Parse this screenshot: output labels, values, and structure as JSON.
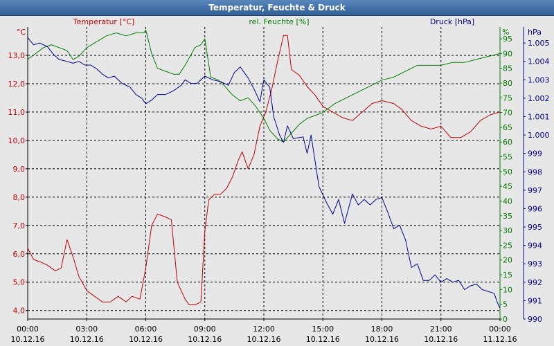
{
  "window": {
    "title": "Temperatur, Feuchte & Druck"
  },
  "colors": {
    "temperature": "#c00000",
    "humidity": "#007f00",
    "pressure": "#000090",
    "grid": "#000000",
    "background": "#e7e7e7",
    "titlebar": "#2f5f96"
  },
  "chart_data": {
    "type": "line",
    "title": "Temperatur, Feuchte & Druck",
    "grid": true,
    "x": {
      "range_hours": [
        0,
        24
      ],
      "tick_hours": [
        0,
        3,
        6,
        9,
        12,
        15,
        18,
        21,
        24
      ],
      "tick_labels": [
        [
          "00:00",
          "10.12.16"
        ],
        [
          "03:00",
          "10.12.16"
        ],
        [
          "06:00",
          "10.12.16"
        ],
        [
          "09:00",
          "10.12.16"
        ],
        [
          "12:00",
          "10.12.16"
        ],
        [
          "15:00",
          "10.12.16"
        ],
        [
          "18:00",
          "10.12.16"
        ],
        [
          "21:00",
          "10.12.16"
        ],
        [
          "00:00",
          "11.12.16"
        ]
      ]
    },
    "axes": {
      "temperature": {
        "label": "Temperatur [°C]",
        "unit": "°C",
        "range": [
          3.7,
          14.0
        ],
        "ticks": [
          4.0,
          5.0,
          6.0,
          7.0,
          8.0,
          9.0,
          10.0,
          11.0,
          12.0,
          13.0
        ],
        "tick_labels": [
          "4,0",
          "5,0",
          "6,0",
          "7,0",
          "8,0",
          "9,0",
          "10,0",
          "11,0",
          "12,0",
          "13,0"
        ]
      },
      "humidity": {
        "label": "rel. Feuchte [%]",
        "unit": "%",
        "range": [
          0,
          99
        ],
        "ticks": [
          0,
          5,
          10,
          15,
          20,
          25,
          30,
          35,
          40,
          45,
          50,
          55,
          60,
          65,
          70,
          75,
          80,
          85,
          90,
          95
        ],
        "tick_labels": [
          "0",
          "5",
          "10",
          "15",
          "20",
          "25",
          "30",
          "35",
          "40",
          "45",
          "50",
          "55",
          "60",
          "65",
          "70",
          "75",
          "80",
          "85",
          "90",
          "95"
        ]
      },
      "pressure": {
        "label": "Druck [hPa]",
        "unit": "hPa",
        "range": [
          990,
          1005.87
        ],
        "ticks": [
          990,
          991,
          992,
          993,
          994,
          995,
          996,
          997,
          998,
          999,
          1000,
          1001,
          1002,
          1003,
          1004,
          1005
        ],
        "tick_labels": [
          "990",
          "991",
          "992",
          "993",
          "994",
          "995",
          "996",
          "997",
          "998",
          "999",
          "1.000",
          "1.001",
          "1.002",
          "1.003",
          "1.004",
          "1.005"
        ]
      }
    },
    "series": [
      {
        "name": "Temperatur [°C]",
        "axis": "temperature",
        "points": [
          [
            0,
            6.2
          ],
          [
            0.3,
            5.8
          ],
          [
            0.7,
            5.7
          ],
          [
            1.0,
            5.6
          ],
          [
            1.4,
            5.4
          ],
          [
            1.7,
            5.5
          ],
          [
            2.0,
            6.5
          ],
          [
            2.3,
            5.9
          ],
          [
            2.6,
            5.2
          ],
          [
            3.0,
            4.7
          ],
          [
            3.4,
            4.5
          ],
          [
            3.8,
            4.3
          ],
          [
            4.2,
            4.3
          ],
          [
            4.6,
            4.5
          ],
          [
            5.0,
            4.3
          ],
          [
            5.3,
            4.5
          ],
          [
            5.7,
            4.4
          ],
          [
            6.0,
            5.5
          ],
          [
            6.3,
            7.0
          ],
          [
            6.6,
            7.4
          ],
          [
            7.0,
            7.3
          ],
          [
            7.3,
            7.2
          ],
          [
            7.6,
            5.0
          ],
          [
            8.0,
            4.4
          ],
          [
            8.2,
            4.2
          ],
          [
            8.5,
            4.2
          ],
          [
            8.8,
            4.3
          ],
          [
            9.0,
            6.8
          ],
          [
            9.2,
            7.9
          ],
          [
            9.5,
            8.1
          ],
          [
            9.8,
            8.1
          ],
          [
            10.1,
            8.3
          ],
          [
            10.4,
            8.7
          ],
          [
            10.7,
            9.3
          ],
          [
            10.9,
            9.6
          ],
          [
            11.2,
            9.0
          ],
          [
            11.5,
            9.5
          ],
          [
            11.8,
            10.5
          ],
          [
            12.1,
            11.0
          ],
          [
            12.4,
            11.8
          ],
          [
            12.7,
            12.8
          ],
          [
            13.0,
            13.7
          ],
          [
            13.2,
            13.7
          ],
          [
            13.4,
            12.5
          ],
          [
            13.8,
            12.3
          ],
          [
            14.2,
            11.9
          ],
          [
            14.6,
            11.6
          ],
          [
            15.0,
            11.2
          ],
          [
            15.5,
            11.0
          ],
          [
            16.0,
            10.8
          ],
          [
            16.5,
            10.7
          ],
          [
            17.0,
            11.0
          ],
          [
            17.5,
            11.3
          ],
          [
            18.0,
            11.4
          ],
          [
            18.6,
            11.3
          ],
          [
            19.0,
            11.1
          ],
          [
            19.5,
            10.7
          ],
          [
            20.0,
            10.5
          ],
          [
            20.5,
            10.4
          ],
          [
            21.0,
            10.5
          ],
          [
            21.5,
            10.1
          ],
          [
            22.0,
            10.1
          ],
          [
            22.5,
            10.3
          ],
          [
            23.0,
            10.7
          ],
          [
            23.5,
            10.9
          ],
          [
            24.0,
            11.0
          ]
        ]
      },
      {
        "name": "rel. Feuchte [%]",
        "axis": "humidity",
        "points": [
          [
            0,
            88
          ],
          [
            0.4,
            90
          ],
          [
            0.8,
            92
          ],
          [
            1.2,
            93
          ],
          [
            1.6,
            92
          ],
          [
            2.0,
            91
          ],
          [
            2.3,
            88
          ],
          [
            2.6,
            89
          ],
          [
            3.0,
            92
          ],
          [
            3.5,
            94
          ],
          [
            4.0,
            96
          ],
          [
            4.5,
            97
          ],
          [
            5.0,
            96
          ],
          [
            5.5,
            97
          ],
          [
            5.9,
            97
          ],
          [
            6.0,
            98
          ],
          [
            6.3,
            90
          ],
          [
            6.6,
            85
          ],
          [
            7.0,
            84
          ],
          [
            7.4,
            83
          ],
          [
            7.7,
            83
          ],
          [
            8.0,
            86
          ],
          [
            8.5,
            92
          ],
          [
            8.8,
            93
          ],
          [
            9.0,
            95
          ],
          [
            9.3,
            82
          ],
          [
            9.7,
            81
          ],
          [
            10.0,
            79
          ],
          [
            10.4,
            76
          ],
          [
            10.8,
            74
          ],
          [
            11.2,
            75
          ],
          [
            11.6,
            72
          ],
          [
            12.0,
            68
          ],
          [
            12.3,
            64
          ],
          [
            12.7,
            61
          ],
          [
            13.0,
            60
          ],
          [
            13.4,
            63
          ],
          [
            13.8,
            66
          ],
          [
            14.2,
            68
          ],
          [
            14.6,
            69
          ],
          [
            15.0,
            70
          ],
          [
            15.6,
            73
          ],
          [
            16.2,
            75
          ],
          [
            16.8,
            77
          ],
          [
            17.4,
            79
          ],
          [
            18.0,
            81
          ],
          [
            18.6,
            82
          ],
          [
            19.2,
            84
          ],
          [
            19.8,
            86
          ],
          [
            20.4,
            86
          ],
          [
            21.0,
            86
          ],
          [
            21.6,
            87
          ],
          [
            22.2,
            87
          ],
          [
            22.8,
            88
          ],
          [
            23.4,
            89
          ],
          [
            24.0,
            90
          ]
        ]
      },
      {
        "name": "Druck [hPa]",
        "axis": "pressure",
        "points": [
          [
            0,
            1005.3
          ],
          [
            0.3,
            1004.9
          ],
          [
            0.6,
            1005.0
          ],
          [
            1.0,
            1004.8
          ],
          [
            1.3,
            1004.4
          ],
          [
            1.6,
            1004.1
          ],
          [
            2.0,
            1004.0
          ],
          [
            2.3,
            1003.9
          ],
          [
            2.6,
            1004.0
          ],
          [
            2.9,
            1003.8
          ],
          [
            3.2,
            1003.8
          ],
          [
            3.5,
            1003.6
          ],
          [
            3.8,
            1003.3
          ],
          [
            4.1,
            1003.1
          ],
          [
            4.4,
            1003.2
          ],
          [
            4.8,
            1002.8
          ],
          [
            5.2,
            1002.6
          ],
          [
            5.5,
            1002.2
          ],
          [
            5.8,
            1002.0
          ],
          [
            6.0,
            1001.7
          ],
          [
            6.3,
            1001.9
          ],
          [
            6.6,
            1002.2
          ],
          [
            7.0,
            1002.2
          ],
          [
            7.4,
            1002.4
          ],
          [
            7.8,
            1002.7
          ],
          [
            8.0,
            1003.0
          ],
          [
            8.3,
            1002.8
          ],
          [
            8.6,
            1002.8
          ],
          [
            9.0,
            1003.2
          ],
          [
            9.4,
            1003.0
          ],
          [
            9.8,
            1002.9
          ],
          [
            10.2,
            1002.7
          ],
          [
            10.5,
            1003.4
          ],
          [
            10.8,
            1003.7
          ],
          [
            11.2,
            1003.1
          ],
          [
            11.5,
            1002.5
          ],
          [
            11.8,
            1001.8
          ],
          [
            12.0,
            1003.0
          ],
          [
            12.3,
            1002.6
          ],
          [
            12.5,
            1001.0
          ],
          [
            12.8,
            1000.0
          ],
          [
            13.0,
            999.6
          ],
          [
            13.2,
            1000.5
          ],
          [
            13.5,
            999.8
          ],
          [
            14.0,
            999.9
          ],
          [
            14.2,
            999.0
          ],
          [
            14.4,
            1000.0
          ],
          [
            14.8,
            997.2
          ],
          [
            15.2,
            996.3
          ],
          [
            15.5,
            995.7
          ],
          [
            15.8,
            996.5
          ],
          [
            16.1,
            995.2
          ],
          [
            16.5,
            996.8
          ],
          [
            16.8,
            996.2
          ],
          [
            17.1,
            996.5
          ],
          [
            17.4,
            996.2
          ],
          [
            17.7,
            996.5
          ],
          [
            18.0,
            996.6
          ],
          [
            18.3,
            995.8
          ],
          [
            18.6,
            994.9
          ],
          [
            18.9,
            995.1
          ],
          [
            19.2,
            994.3
          ],
          [
            19.5,
            992.8
          ],
          [
            19.8,
            993.0
          ],
          [
            20.1,
            992.1
          ],
          [
            20.4,
            992.1
          ],
          [
            20.7,
            992.4
          ],
          [
            21.0,
            992.0
          ],
          [
            21.3,
            992.2
          ],
          [
            21.6,
            992.0
          ],
          [
            21.9,
            992.1
          ],
          [
            22.2,
            991.6
          ],
          [
            22.5,
            991.8
          ],
          [
            22.8,
            991.9
          ],
          [
            23.1,
            991.6
          ],
          [
            23.4,
            991.5
          ],
          [
            23.7,
            991.4
          ],
          [
            23.9,
            990.8
          ],
          [
            24.0,
            990.6
          ]
        ]
      }
    ]
  }
}
